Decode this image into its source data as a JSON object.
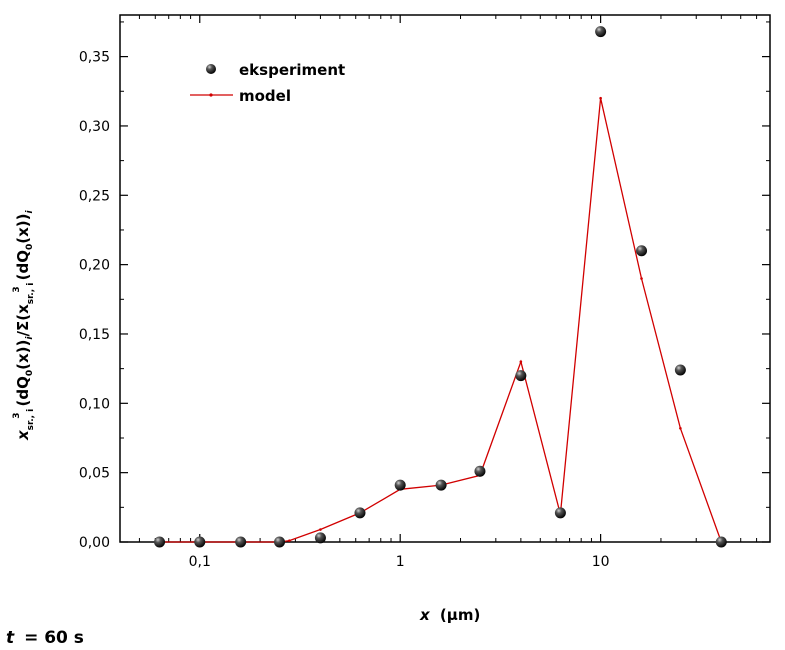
{
  "chart_data": {
    "type": "scatter",
    "x_scale": "log",
    "xlim": [
      0.04,
      70
    ],
    "ylim": [
      0,
      0.38
    ],
    "y_ticks": [
      0.0,
      0.05,
      0.1,
      0.15,
      0.2,
      0.25,
      0.3,
      0.35
    ],
    "y_tick_labels": [
      "0,00",
      "0,05",
      "0,10",
      "0,15",
      "0,20",
      "0,25",
      "0,30",
      "0,35"
    ],
    "x_ticks": [
      0.1,
      1,
      10
    ],
    "x_tick_labels": [
      "0,1",
      "1",
      "10"
    ],
    "xlabel_var": "x",
    "xlabel_unit": "(μm)",
    "ylabel": {
      "x": "x",
      "sub": "sr., i",
      "sup": "3",
      "numerator": "(dQ",
      "zero": "0",
      "mid": "(x))",
      "i": "i",
      "divider": "/Σ(x",
      "sub2": "sr., i",
      "sup2": "3",
      "denominator": "(dQ",
      "zero2": "0",
      "tail": "(x))",
      "i2": "i"
    },
    "legend_position": "top-left",
    "legend": [
      {
        "name": "eksperiment",
        "marker": "sphere"
      },
      {
        "name": "model",
        "marker": "line"
      }
    ],
    "series": [
      {
        "name": "eksperiment",
        "kind": "points",
        "x": [
          0.063,
          0.1,
          0.16,
          0.25,
          0.4,
          0.63,
          1.0,
          1.6,
          2.5,
          4.0,
          6.3,
          10.0,
          16.0,
          25.0,
          40.0
        ],
        "y": [
          0.0,
          0.0,
          0.0,
          0.0,
          0.003,
          0.021,
          0.041,
          0.041,
          0.051,
          0.12,
          0.021,
          0.368,
          0.21,
          0.124,
          0.0
        ],
        "color": "#111111"
      },
      {
        "name": "model",
        "kind": "line",
        "x": [
          0.063,
          0.1,
          0.16,
          0.25,
          0.28,
          0.4,
          0.63,
          1.0,
          1.6,
          2.5,
          4.0,
          6.3,
          10.0,
          16.0,
          25.0,
          40.0
        ],
        "y": [
          0.0,
          0.0,
          0.0,
          0.0,
          0.001,
          0.009,
          0.021,
          0.038,
          0.041,
          0.048,
          0.13,
          0.02,
          0.32,
          0.19,
          0.082,
          0.0
        ],
        "color": "#d10000"
      }
    ],
    "caption_var": "t",
    "caption_value": "= 60 s"
  }
}
